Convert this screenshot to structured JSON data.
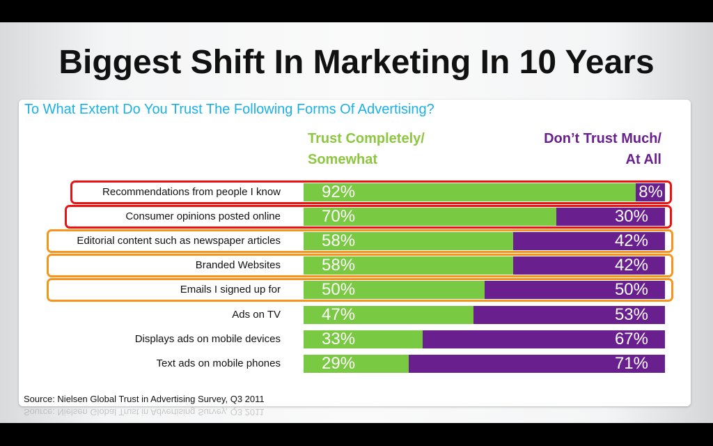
{
  "title": "Biggest Shift In Marketing In 10 Years",
  "chart_data": {
    "type": "bar",
    "stacked": true,
    "orientation": "horizontal",
    "title": "To What Extent Do You Trust The Following Forms Of Advertising?",
    "categories": [
      "Recommendations from people I know",
      "Consumer opinions posted online",
      "Editorial content such as newspaper articles",
      "Branded Websites",
      "Emails I signed up for",
      "Ads on TV",
      "Displays ads on mobile devices",
      "Text ads on mobile phones"
    ],
    "series": [
      {
        "name": "Trust Completely/ Somewhat",
        "color": "#7ac943",
        "values": [
          92,
          70,
          58,
          58,
          50,
          47,
          33,
          29
        ]
      },
      {
        "name": "Don’t Trust Much/ At All",
        "color": "#6a1f8e",
        "values": [
          8,
          30,
          42,
          42,
          50,
          53,
          67,
          71
        ]
      }
    ],
    "header_green": [
      "Trust Completely/",
      "Somewhat"
    ],
    "header_purple": [
      "Don’t Trust Much/",
      "At All"
    ],
    "highlights": [
      {
        "rows": [
          0,
          1
        ],
        "color": "#ee1111"
      },
      {
        "rows": [
          2,
          3,
          4
        ],
        "color": "#f7941d"
      }
    ],
    "xlim": [
      0,
      100
    ]
  },
  "source": "Source: Nielsen Global Trust in Advertising Survey, Q3 2011"
}
